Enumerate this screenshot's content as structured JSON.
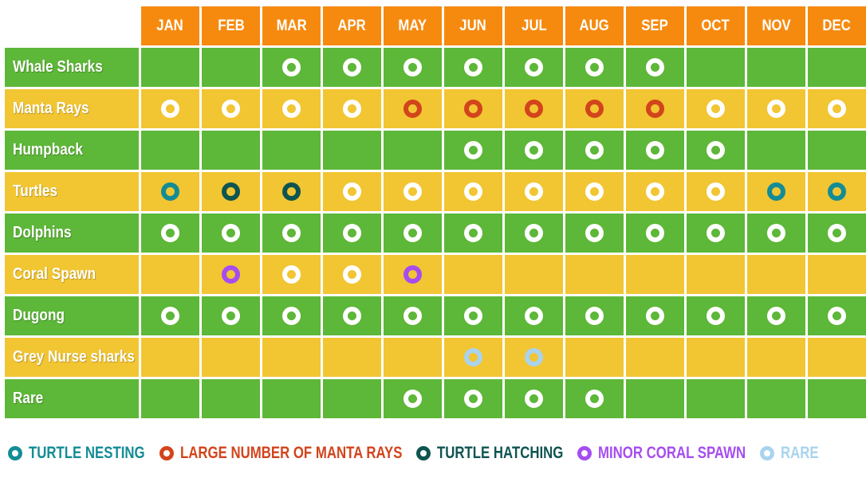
{
  "months": [
    "JAN",
    "FEB",
    "MAR",
    "APR",
    "MAY",
    "JUN",
    "JUL",
    "AUG",
    "SEP",
    "OCT",
    "NOV",
    "DEC"
  ],
  "colors": {
    "header": "#f68a0f",
    "row_green": "#5db738",
    "row_yellow": "#f2c533",
    "common_dot_center_green": "#5db738",
    "common_dot_center_yellow": "#f2c533"
  },
  "dot_types": {
    "common": {
      "ring": "#ffffff"
    },
    "turtle_nesting": {
      "ring": "#138c95",
      "label": "TURTLE NESTING"
    },
    "manta": {
      "ring": "#d2441c",
      "label": "LARGE NUMBER OF MANTA RAYS"
    },
    "turtle_hatching": {
      "ring": "#0e5451",
      "label": "TURTLE HATCHING"
    },
    "coral": {
      "ring": "#a64df0",
      "label": "MINOR CORAL SPAWN"
    },
    "rare": {
      "ring": "#a9d3ee",
      "label": "RARE"
    }
  },
  "rows": [
    {
      "label": "Whale Sharks",
      "color": "green",
      "cells": [
        "",
        "",
        "common",
        "common",
        "common",
        "common",
        "common",
        "common",
        "common",
        "",
        "",
        ""
      ]
    },
    {
      "label": "Manta Rays",
      "color": "yellow",
      "cells": [
        "common",
        "common",
        "common",
        "common",
        "manta",
        "manta",
        "manta",
        "manta",
        "manta",
        "common",
        "common",
        "common"
      ]
    },
    {
      "label": "Humpback",
      "color": "green",
      "cells": [
        "",
        "",
        "",
        "",
        "",
        "common",
        "common",
        "common",
        "common",
        "common",
        "",
        ""
      ]
    },
    {
      "label": "Turtles",
      "color": "yellow",
      "cells": [
        "turtle_nesting",
        "turtle_hatching",
        "turtle_hatching",
        "common",
        "common",
        "common",
        "common",
        "common",
        "common",
        "common",
        "turtle_nesting",
        "turtle_nesting"
      ]
    },
    {
      "label": "Dolphins",
      "color": "green",
      "cells": [
        "common",
        "common",
        "common",
        "common",
        "common",
        "common",
        "common",
        "common",
        "common",
        "common",
        "common",
        "common"
      ]
    },
    {
      "label": "Coral Spawn",
      "color": "yellow",
      "cells": [
        "",
        "coral",
        "common",
        "common",
        "coral",
        "",
        "",
        "",
        "",
        "",
        "",
        ""
      ]
    },
    {
      "label": "Dugong",
      "color": "green",
      "cells": [
        "common",
        "common",
        "common",
        "common",
        "common",
        "common",
        "common",
        "common",
        "common",
        "common",
        "common",
        "common"
      ]
    },
    {
      "label": "Grey Nurse sharks",
      "color": "yellow",
      "cells": [
        "",
        "",
        "",
        "",
        "",
        "rare",
        "rare",
        "",
        "",
        "",
        "",
        ""
      ]
    },
    {
      "label": "Rare",
      "color": "green",
      "cells": [
        "",
        "",
        "",
        "",
        "common",
        "common",
        "common",
        "common",
        "",
        "",
        "",
        ""
      ]
    }
  ],
  "legend": [
    {
      "type": "turtle_nesting",
      "label": "TURTLE NESTING"
    },
    {
      "type": "manta",
      "label": "LARGE NUMBER OF MANTA RAYS"
    },
    {
      "type": "turtle_hatching",
      "label": "TURTLE HATCHING"
    },
    {
      "type": "coral",
      "label": "MINOR CORAL SPAWN"
    },
    {
      "type": "rare",
      "label": "RARE"
    }
  ]
}
